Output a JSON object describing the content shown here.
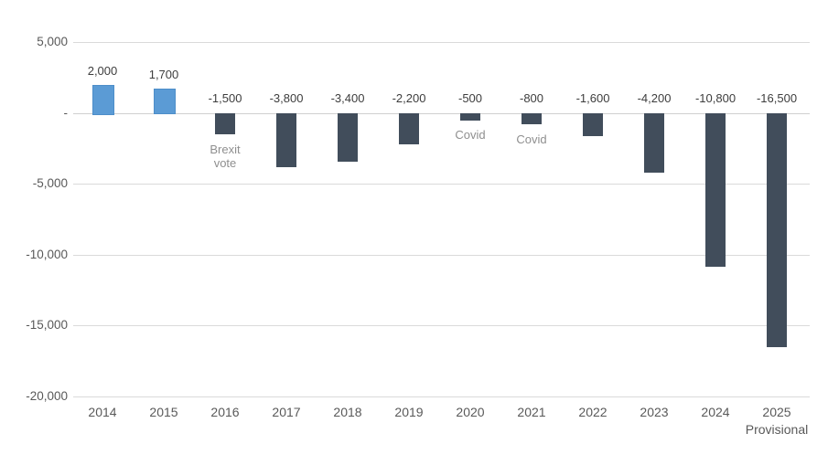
{
  "chart_data": {
    "type": "bar",
    "title": "",
    "legend": "none",
    "grid": true,
    "ylim": [
      -20000,
      5000
    ],
    "yticks": [
      {
        "value": 5000,
        "label": "5,000"
      },
      {
        "value": 0,
        "label": "-"
      },
      {
        "value": -5000,
        "label": "-5,000"
      },
      {
        "value": -10000,
        "label": "-10,000"
      },
      {
        "value": -15000,
        "label": "-15,000"
      },
      {
        "value": -20000,
        "label": "-20,000"
      }
    ],
    "categories": [
      "2014",
      "2015",
      "2016",
      "2017",
      "2018",
      "2019",
      "2020",
      "2021",
      "2022",
      "2023",
      "2024",
      "2025"
    ],
    "values": [
      2000,
      1700,
      -1500,
      -3800,
      -3400,
      -2200,
      -500,
      -800,
      -1600,
      -4200,
      -10800,
      -16500
    ],
    "value_labels": [
      "2,000",
      "1,700",
      "-1,500",
      "-3,800",
      "-3,400",
      "-2,200",
      "-500",
      "-800",
      "-1,600",
      "-4,200",
      "-10,800",
      "-16,500"
    ],
    "annotations": [
      {
        "index": 2,
        "lines": [
          "Brexit",
          "vote"
        ]
      },
      {
        "index": 6,
        "lines": [
          "Covid"
        ]
      },
      {
        "index": 7,
        "lines": [
          "Covid"
        ]
      }
    ],
    "x_sublabels": [
      {
        "index": 11,
        "text": "Provisional"
      }
    ],
    "colors": {
      "positive_bar": "#5b9bd5",
      "negative_bar": "#414d5b",
      "gridline": "#dadada",
      "zero_line": "#cfcfcf",
      "axis_text": "#595959",
      "value_text": "#3d3d3d",
      "annotation_text": "#8f8f8f",
      "background": "#ffffff"
    }
  }
}
